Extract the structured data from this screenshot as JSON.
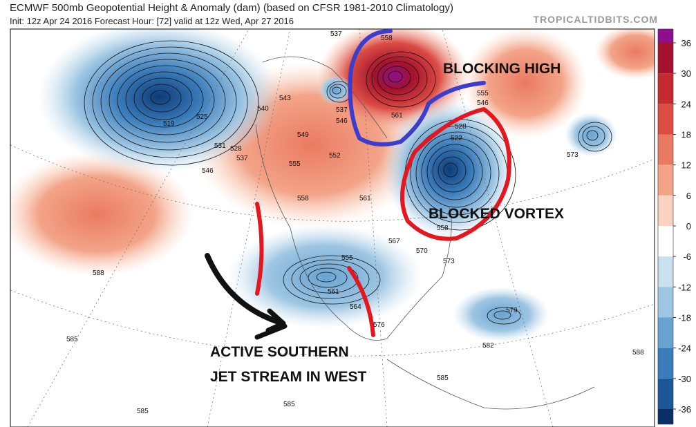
{
  "header": {
    "title": "ECMWF 500mb Geopotential Height & Anomaly (dam) (based on CFSR 1981-2010 Climatology)",
    "init_line": "Init: 12z Apr 24 2016   Forecast Hour: [72]   valid at 12z Wed, Apr 27 2016",
    "source": "TROPICALTIDBITS.COM"
  },
  "annotations": [
    "BLOCKING HIGH",
    "BLOCKED VORTEX",
    "ACTIVE SOUTHERN",
    "JET STREAM IN WEST"
  ],
  "colorbar": {
    "ticks": [
      36,
      30,
      24,
      18,
      12,
      6,
      0,
      -6,
      -12,
      -18,
      -24,
      -30,
      -36
    ],
    "colors": [
      "#8e0f8c",
      "#a3122c",
      "#c52a30",
      "#dc4c44",
      "#ea7a62",
      "#f3a488",
      "#fad3c0",
      "#ffffff",
      "#c9e0ef",
      "#9ec6e3",
      "#6aa3d0",
      "#3b7cba",
      "#1c5699",
      "#0b2e66"
    ]
  },
  "contour_labels": [
    "537",
    "558",
    "561",
    "555",
    "546",
    "528",
    "522",
    "519",
    "525",
    "531",
    "528",
    "537",
    "546",
    "540",
    "543",
    "549",
    "537",
    "546",
    "552",
    "555",
    "558",
    "561",
    "567",
    "570",
    "573",
    "558",
    "555",
    "561",
    "564",
    "576",
    "579",
    "582",
    "588",
    "588",
    "585",
    "585",
    "585",
    "585",
    "573"
  ]
}
